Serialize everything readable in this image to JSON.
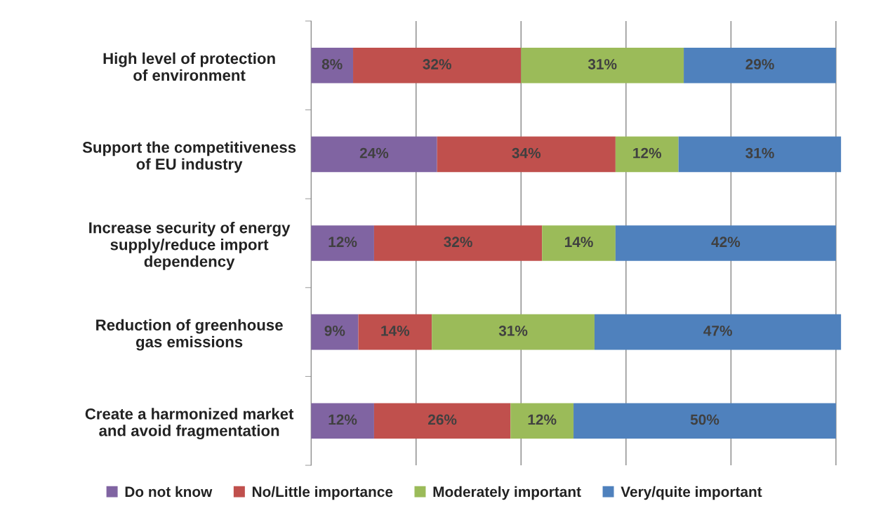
{
  "chart_data": {
    "type": "bar",
    "orientation": "horizontal",
    "stacked": true,
    "categories": [
      "High level of protection\nof environment",
      "Support the competitiveness\nof EU industry",
      "Increase security of energy\nsupply/reduce import\ndependency",
      "Reduction of greenhouse\ngas emissions",
      "Create a harmonized market\nand avoid fragmentation"
    ],
    "series": [
      {
        "name": "Do not know",
        "color": "#8064a2",
        "values": [
          8,
          24,
          12,
          9,
          12
        ],
        "value_labels": [
          "8%",
          "24%",
          "12%",
          "9%",
          "12%"
        ]
      },
      {
        "name": "No/Little importance",
        "color": "#c0504d",
        "values": [
          32,
          34,
          32,
          14,
          26
        ],
        "value_labels": [
          "32%",
          "34%",
          "32%",
          "14%",
          "26%"
        ]
      },
      {
        "name": "Moderately important",
        "color": "#9bbb59",
        "values": [
          31,
          12,
          14,
          31,
          12
        ],
        "value_labels": [
          "31%",
          "12%",
          "14%",
          "31%",
          "12%"
        ]
      },
      {
        "name": "Very/quite important",
        "color": "#4f81bd",
        "values": [
          29,
          31,
          42,
          47,
          50
        ],
        "value_labels": [
          "29%",
          "31%",
          "42%",
          "47%",
          "50%"
        ]
      }
    ],
    "tick_labels": "y",
    "grid": "x",
    "legend": "bottom"
  }
}
